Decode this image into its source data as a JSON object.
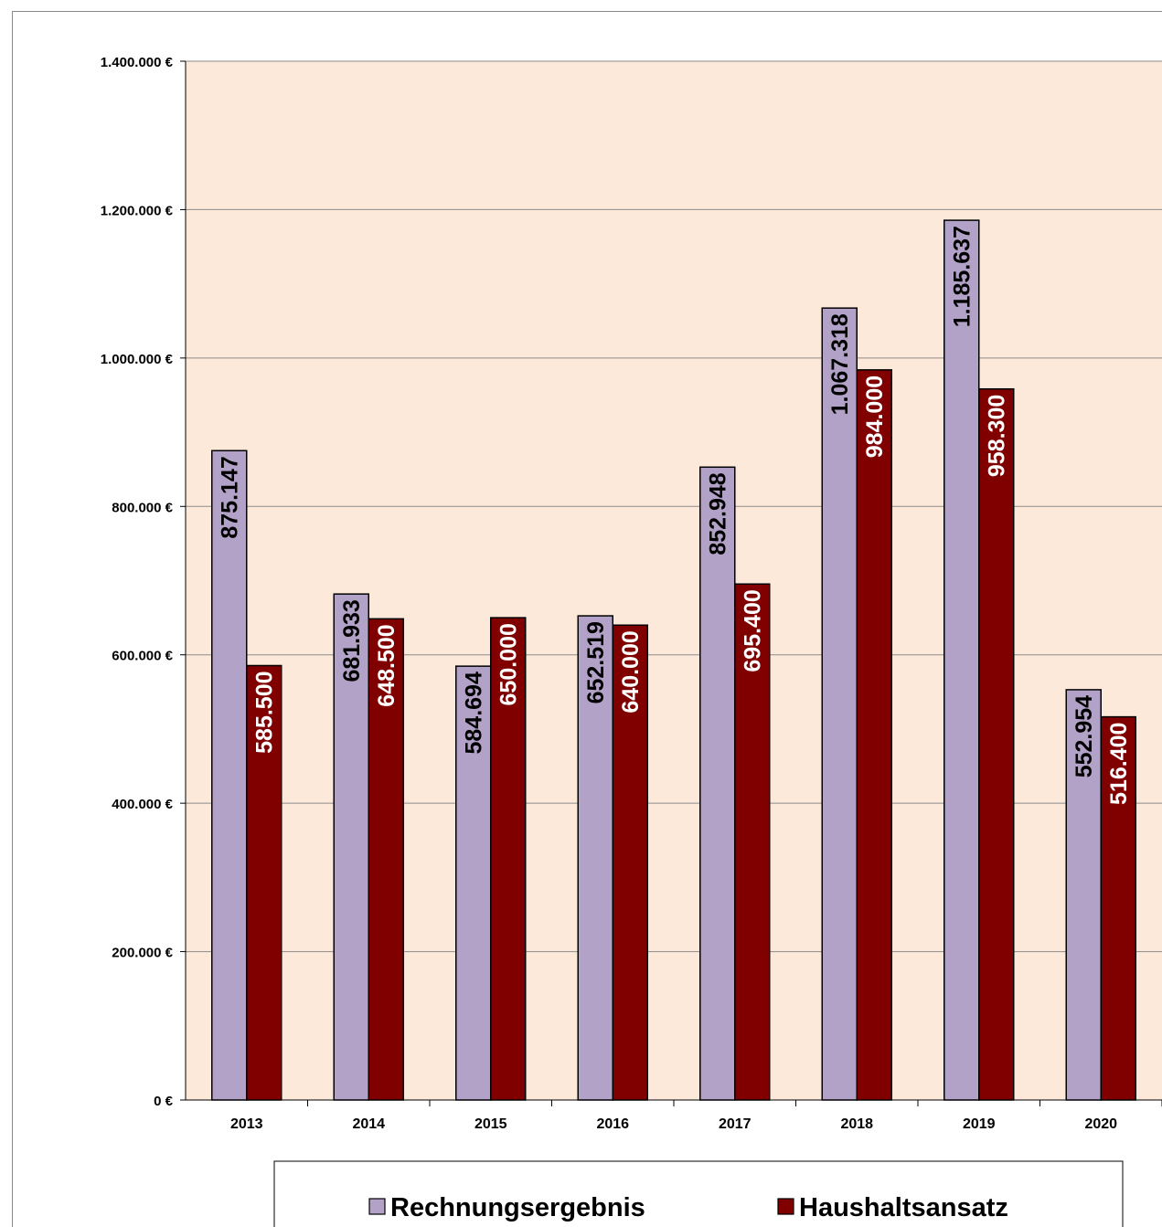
{
  "chart_data": {
    "type": "bar",
    "title": "",
    "xlabel": "",
    "ylabel": "",
    "categories": [
      "2013",
      "2014",
      "2015",
      "2016",
      "2017",
      "2018",
      "2019",
      "2020"
    ],
    "series": [
      {
        "name": "Rechnungsergebnis",
        "color": "#b3a2c7",
        "values": [
          875147,
          681933,
          584694,
          652519,
          852948,
          1067318,
          1185637,
          552954
        ],
        "labels": [
          "875.147",
          "681.933",
          "584.694",
          "652.519",
          "852.948",
          "1.067.318",
          "1.185.637",
          "552.954"
        ],
        "label_color": "#000000"
      },
      {
        "name": "Haushaltsansatz",
        "color": "#800000",
        "values": [
          585500,
          648500,
          650000,
          640000,
          695400,
          984000,
          958300,
          516400
        ],
        "labels": [
          "585.500",
          "648.500",
          "650.000",
          "640.000",
          "695.400",
          "984.000",
          "958.300",
          "516.400"
        ],
        "label_color": "#ffffff"
      }
    ],
    "ylim": [
      0,
      1400000
    ],
    "yticks": [
      0,
      200000,
      400000,
      600000,
      800000,
      1000000,
      1200000,
      1400000
    ],
    "ytick_labels": [
      "0 €",
      "200.000 €",
      "400.000 €",
      "600.000 €",
      "800.000 €",
      "1.000.000 €",
      "1.200.000 €",
      "1.400.000 €"
    ],
    "grid": true,
    "plot_background": "#fde9d9",
    "legend_position": "bottom"
  }
}
